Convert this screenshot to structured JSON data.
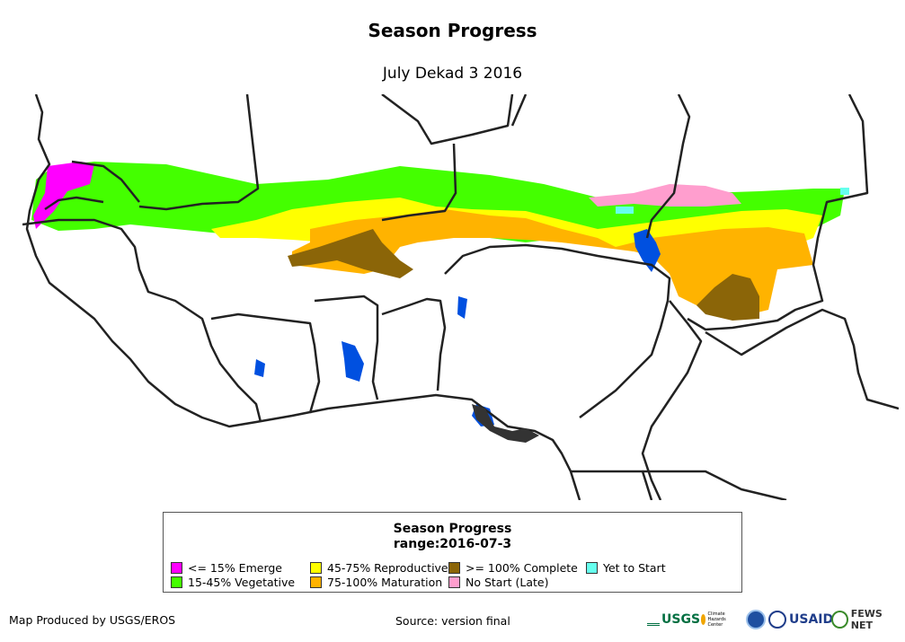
{
  "title": "Season Progress",
  "subtitle": "July Dekad 3 2016",
  "legend": {
    "title": "Season Progress",
    "range": "range:2016-07-3",
    "items": [
      {
        "label": "<= 15% Emerge",
        "color": "#ff00ff"
      },
      {
        "label": "15-45% Vegetative",
        "color": "#44ff00"
      },
      {
        "label": "45-75% Reproductive",
        "color": "#ffff00"
      },
      {
        "label": "75-100% Maturation",
        "color": "#ffb300"
      },
      {
        "label": ">= 100% Complete",
        "color": "#8b6508"
      },
      {
        "label": "No Start (Late)",
        "color": "#ff9ece"
      },
      {
        "label": "Yet to Start",
        "color": "#66ffee"
      }
    ]
  },
  "colors": {
    "water": "#0050e0",
    "border": "#222222",
    "ocean": "#ffffff"
  },
  "footer": {
    "produced_by": "Map Produced by USGS/EROS",
    "source": "Source: version final"
  },
  "logos": {
    "usgs": "USGS",
    "chc": "Climate Hazards Center",
    "usaid": "USAID",
    "fews": "FEWS NET"
  }
}
